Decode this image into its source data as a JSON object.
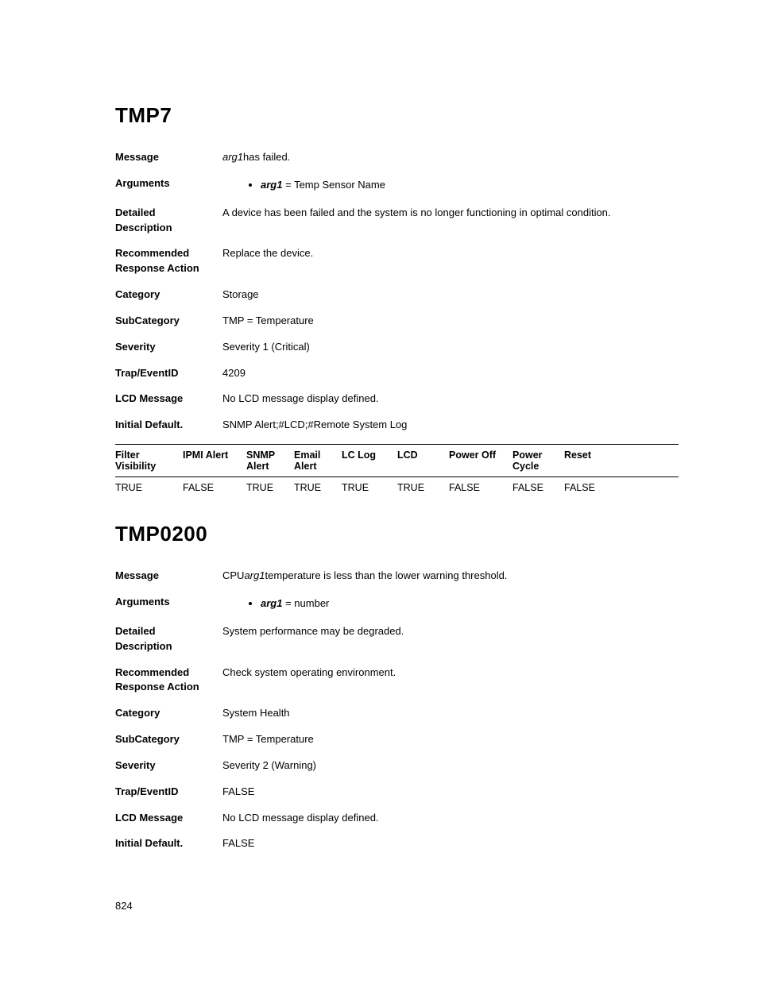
{
  "page_number": "824",
  "section1": {
    "title": "TMP7",
    "fields": {
      "message_label": "Message",
      "message_arg": "arg1",
      "message_rest": "has failed.",
      "arguments_label": "Arguments",
      "arg_name": "arg1",
      "arg_eq": " = ",
      "arg_desc": "Temp Sensor Name",
      "detailed_label_l1": "Detailed",
      "detailed_label_l2": "Description",
      "detailed_value": "A device has been failed and the system is no longer functioning in optimal condition.",
      "recommended_label_l1": "Recommended",
      "recommended_label_l2": "Response Action",
      "recommended_value": "Replace the device.",
      "category_label": "Category",
      "category_value": "Storage",
      "subcategory_label": "SubCategory",
      "subcategory_value": "TMP = Temperature",
      "severity_label": "Severity",
      "severity_value": "Severity 1 (Critical)",
      "trap_label": "Trap/EventID",
      "trap_value": "4209",
      "lcd_label": "LCD Message",
      "lcd_value": "No LCD message display defined.",
      "initial_label": "Initial Default.",
      "initial_value": "SNMP Alert;#LCD;#Remote System Log"
    },
    "table": {
      "headers": [
        "Filter Visibility",
        "IPMI Alert",
        "SNMP Alert",
        "Email Alert",
        "LC Log",
        "LCD",
        "Power Off",
        "Power Cycle",
        "Reset"
      ],
      "row": [
        "TRUE",
        "FALSE",
        "TRUE",
        "TRUE",
        "TRUE",
        "TRUE",
        "FALSE",
        "FALSE",
        "FALSE"
      ]
    }
  },
  "section2": {
    "title": "TMP0200",
    "fields": {
      "message_label": "Message",
      "message_pre": "CPU",
      "message_arg": "arg1",
      "message_rest": "temperature is less than the lower warning threshold.",
      "arguments_label": "Arguments",
      "arg_name": "arg1",
      "arg_eq": " = ",
      "arg_desc": "number",
      "detailed_label_l1": "Detailed",
      "detailed_label_l2": "Description",
      "detailed_value": "System performance may be degraded.",
      "recommended_label_l1": "Recommended",
      "recommended_label_l2": "Response Action",
      "recommended_value": "Check system operating environment.",
      "category_label": "Category",
      "category_value": "System Health",
      "subcategory_label": "SubCategory",
      "subcategory_value": "TMP = Temperature",
      "severity_label": "Severity",
      "severity_value": "Severity 2 (Warning)",
      "trap_label": "Trap/EventID",
      "trap_value": "FALSE",
      "lcd_label": "LCD Message",
      "lcd_value": "No LCD message display defined.",
      "initial_label": "Initial Default.",
      "initial_value": "FALSE"
    }
  }
}
